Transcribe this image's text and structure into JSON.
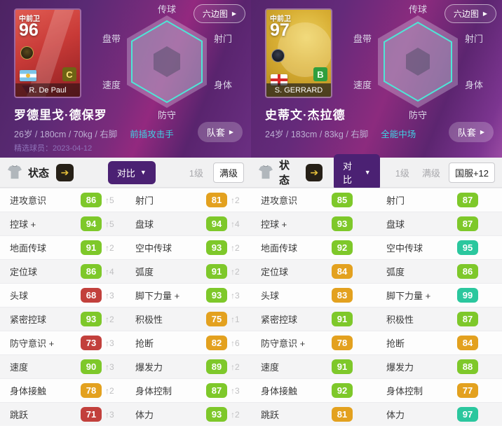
{
  "theme": {
    "tone_colors": {
      "green": "#7ec82a",
      "red": "#c2403c",
      "orange": "#e3a11f",
      "teal": "#2bc79e"
    },
    "accent_purple": "#4b2173",
    "playstyle_cyan": "#3fd2e4"
  },
  "players": [
    {
      "hexmap_button": "六边图",
      "card": {
        "position": "中前卫",
        "rating": "96",
        "card_name": "R. De Paul",
        "grade": "C"
      },
      "radar": [
        "传球",
        "射门",
        "身体",
        "防守",
        "速度",
        "盘带"
      ],
      "name": "罗德里戈·德保罗",
      "info": "26岁 / 180cm / 70kg / 右脚",
      "playstyle": "前插攻击手",
      "kit_button": "队套",
      "featured": "精选球员：2023-04-12"
    },
    {
      "hexmap_button": "六边图",
      "card": {
        "position": "中前卫",
        "rating": "97",
        "card_name": "S. GERRARD",
        "grade": "B"
      },
      "radar": [
        "传球",
        "射门",
        "身体",
        "防守",
        "速度",
        "盘带"
      ],
      "name": "史蒂文·杰拉德",
      "info": "24岁 / 183cm / 83kg / 右脚",
      "playstyle": "全能中场",
      "kit_button": "队套",
      "featured": ""
    }
  ],
  "status_bars": [
    {
      "label": "状态",
      "compare": "对比",
      "options": [
        {
          "label": "1级",
          "active": false
        },
        {
          "label": "满级",
          "active": true
        }
      ]
    },
    {
      "label": "状态",
      "compare": "对比",
      "options": [
        {
          "label": "1级",
          "active": false
        },
        {
          "label": "满级",
          "active": false
        },
        {
          "label": "国服+12",
          "active": true
        }
      ]
    }
  ],
  "stats": {
    "rows": [
      {
        "cells": [
          {
            "label": "进攻意识",
            "value": "86",
            "delta": "↑5",
            "tone": "green"
          },
          {
            "label": "射门",
            "value": "81",
            "delta": "↑2",
            "tone": "orange"
          },
          {
            "label": "进攻意识",
            "value": "85",
            "delta": "",
            "tone": "green"
          },
          {
            "label": "射门",
            "value": "87",
            "delta": "",
            "tone": "green"
          }
        ]
      },
      {
        "cells": [
          {
            "label": "控球 +",
            "value": "94",
            "delta": "↑5",
            "tone": "green"
          },
          {
            "label": "盘球",
            "value": "94",
            "delta": "↑4",
            "tone": "green"
          },
          {
            "label": "控球 +",
            "value": "93",
            "delta": "",
            "tone": "green"
          },
          {
            "label": "盘球",
            "value": "87",
            "delta": "",
            "tone": "green"
          }
        ]
      },
      {
        "cells": [
          {
            "label": "地面传球",
            "value": "91",
            "delta": "↑2",
            "tone": "green"
          },
          {
            "label": "空中传球",
            "value": "93",
            "delta": "↑2",
            "tone": "green"
          },
          {
            "label": "地面传球",
            "value": "92",
            "delta": "",
            "tone": "green"
          },
          {
            "label": "空中传球",
            "value": "95",
            "delta": "",
            "tone": "teal"
          }
        ]
      },
      {
        "cells": [
          {
            "label": "定位球",
            "value": "86",
            "delta": "↑4",
            "tone": "green"
          },
          {
            "label": "弧度",
            "value": "91",
            "delta": "↑2",
            "tone": "green"
          },
          {
            "label": "定位球",
            "value": "84",
            "delta": "",
            "tone": "orange"
          },
          {
            "label": "弧度",
            "value": "86",
            "delta": "",
            "tone": "green"
          }
        ]
      },
      {
        "cells": [
          {
            "label": "头球",
            "value": "68",
            "delta": "↑3",
            "tone": "red"
          },
          {
            "label": "脚下力量 +",
            "value": "93",
            "delta": "↑3",
            "tone": "green"
          },
          {
            "label": "头球",
            "value": "83",
            "delta": "",
            "tone": "orange"
          },
          {
            "label": "脚下力量 +",
            "value": "99",
            "delta": "",
            "tone": "teal"
          }
        ]
      },
      {
        "cells": [
          {
            "label": "紧密控球",
            "value": "93",
            "delta": "↑2",
            "tone": "green"
          },
          {
            "label": "积极性",
            "value": "75",
            "delta": "↑1",
            "tone": "orange"
          },
          {
            "label": "紧密控球",
            "value": "91",
            "delta": "",
            "tone": "green"
          },
          {
            "label": "积极性",
            "value": "87",
            "delta": "",
            "tone": "green"
          }
        ]
      },
      {
        "cells": [
          {
            "label": "防守意识 +",
            "value": "73",
            "delta": "↑3",
            "tone": "red"
          },
          {
            "label": "抢断",
            "value": "82",
            "delta": "↑6",
            "tone": "orange"
          },
          {
            "label": "防守意识 +",
            "value": "78",
            "delta": "",
            "tone": "orange"
          },
          {
            "label": "抢断",
            "value": "84",
            "delta": "",
            "tone": "orange"
          }
        ]
      },
      {
        "cells": [
          {
            "label": "速度",
            "value": "90",
            "delta": "↑3",
            "tone": "green"
          },
          {
            "label": "爆发力",
            "value": "89",
            "delta": "↑2",
            "tone": "green"
          },
          {
            "label": "速度",
            "value": "91",
            "delta": "",
            "tone": "green"
          },
          {
            "label": "爆发力",
            "value": "88",
            "delta": "",
            "tone": "green"
          }
        ]
      },
      {
        "cells": [
          {
            "label": "身体接触",
            "value": "78",
            "delta": "↑2",
            "tone": "orange"
          },
          {
            "label": "身体控制",
            "value": "87",
            "delta": "↑3",
            "tone": "green"
          },
          {
            "label": "身体接触",
            "value": "92",
            "delta": "",
            "tone": "green"
          },
          {
            "label": "身体控制",
            "value": "77",
            "delta": "",
            "tone": "orange"
          }
        ]
      },
      {
        "cells": [
          {
            "label": "跳跃",
            "value": "71",
            "delta": "↑3",
            "tone": "red"
          },
          {
            "label": "体力",
            "value": "93",
            "delta": "↑2",
            "tone": "green"
          },
          {
            "label": "跳跃",
            "value": "81",
            "delta": "",
            "tone": "orange"
          },
          {
            "label": "体力",
            "value": "97",
            "delta": "",
            "tone": "teal"
          }
        ]
      }
    ]
  }
}
